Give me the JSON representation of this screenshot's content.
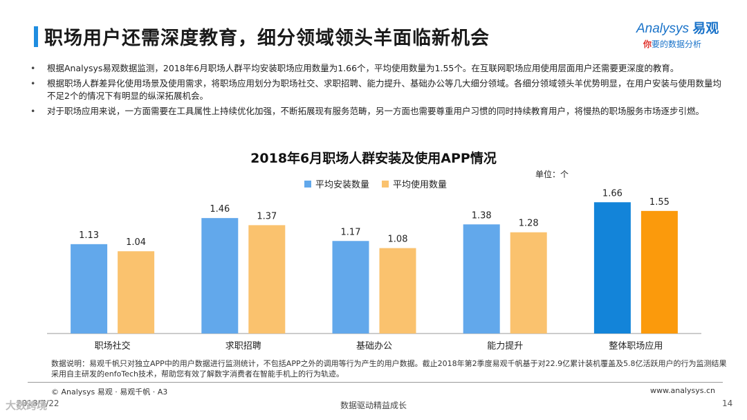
{
  "slide": {
    "title": "职场用户还需深度教育，细分领域领头羊面临新机会",
    "logo_main": "Analysys",
    "logo_cn": "易观",
    "logo_sub_first": "你",
    "logo_sub_rest": "要的数据分析"
  },
  "bullets": [
    "根据Analysys易观数据监测，2018年6月职场人群平均安装职场应用数量为1.66个，平均使用数量为1.55个。在互联网职场应用使用层面用户还需要更深度的教育。",
    "根据职场人群差异化使用场景及使用需求，将职场应用划分为职场社交、求职招聘、能力提升、基础办公等几大细分领域。各细分领域领头羊优势明显，在用户安装与使用数量均不足2个的情况下有明显的纵深拓展机会。",
    "对于职场应用来说，一方面需要在工具属性上持续优化加强，不断拓展现有服务范畴，另一方面也需要尊重用户习惯的同时持续教育用户，将慢热的职场服务市场逐步引燃。"
  ],
  "chart_data": {
    "type": "bar",
    "title": "2018年6月职场人群安装及使用APP情况",
    "unit": "单位：个",
    "categories": [
      "职场社交",
      "求职招聘",
      "基础办公",
      "能力提升",
      "整体职场应用"
    ],
    "series": [
      {
        "name": "平均安装数量",
        "values": [
          1.13,
          1.46,
          1.17,
          1.38,
          1.66
        ],
        "color": "#62a8eb",
        "highlight_color": "#1384d9"
      },
      {
        "name": "平均使用数量",
        "values": [
          1.04,
          1.37,
          1.08,
          1.28,
          1.55
        ],
        "color": "#fac26e",
        "highlight_color": "#fb9a0c"
      }
    ],
    "highlight_index": 4,
    "ylim": [
      0,
      1.75
    ],
    "grid": false,
    "legend_position": "top"
  },
  "note": "数据说明：易观千帆只对独立APP中的用户数据进行监测统计，不包括APP之外的调用等行为产生的用户数据。截止2018年第2季度易观千帆基于对22.9亿累计装机覆盖及5.8亿活跃用户的行为监测结果采用自主研发的enfoTech技术，帮助您有效了解数字消费者在智能手机上的行为轨迹。",
  "footer": {
    "copyright": "© Analysys 易观 · 易观千帆 · A3",
    "website": "www.analysys.cn",
    "date": "2018/7/22",
    "slogan": "数据驱动精益成长",
    "page": "14",
    "watermark": "大数跨境"
  }
}
